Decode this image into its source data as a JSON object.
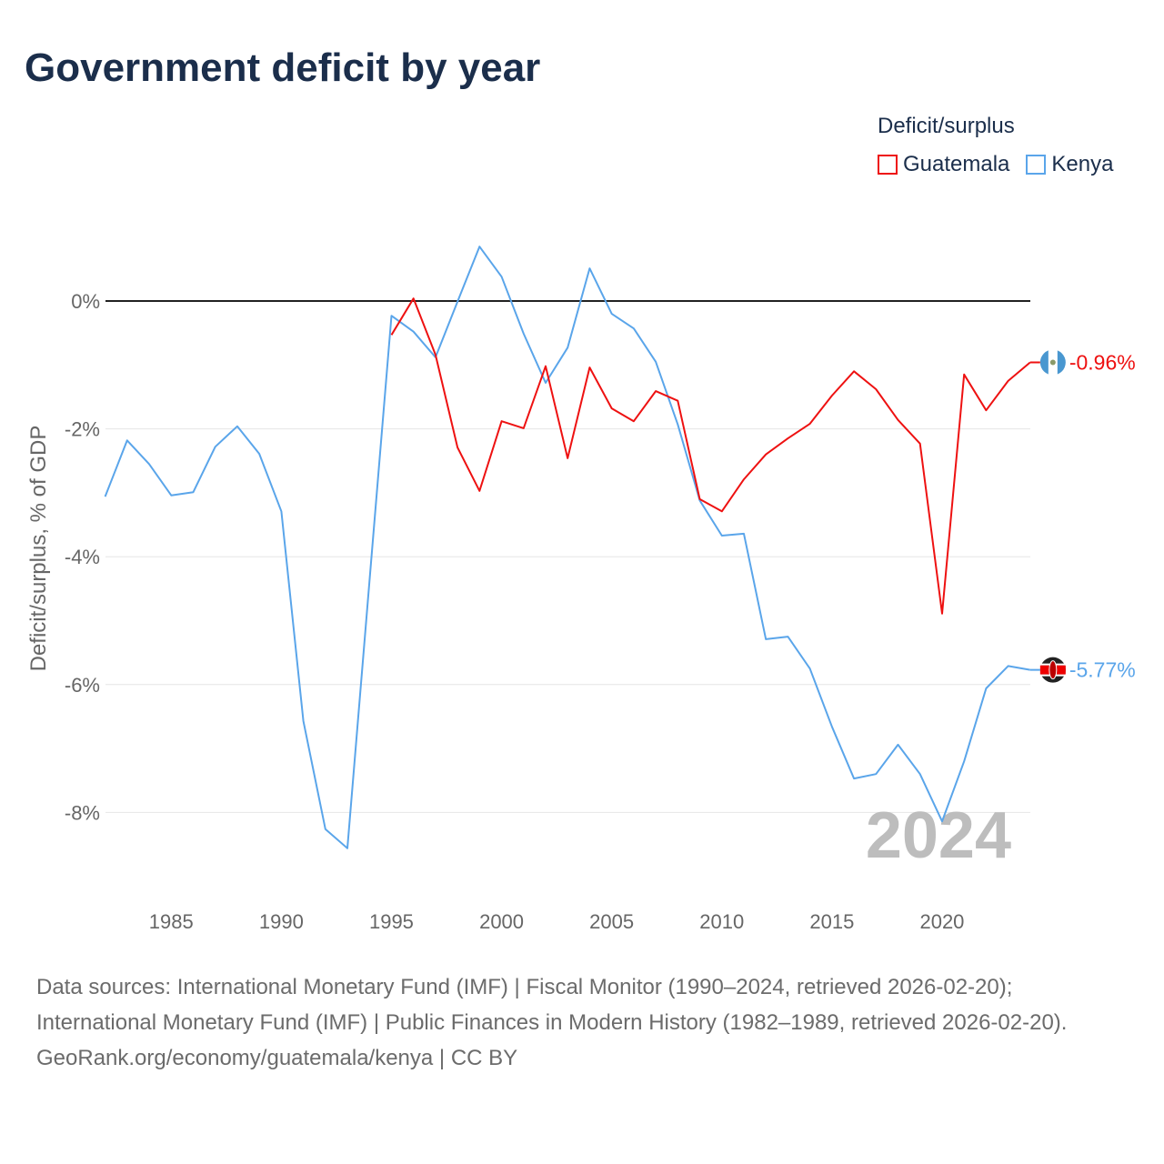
{
  "title": "Government deficit by year",
  "legend": {
    "title": "Deficit/surplus",
    "items": [
      {
        "label": "Guatemala",
        "color": "#ee1111"
      },
      {
        "label": "Kenya",
        "color": "#5aa5ea"
      }
    ]
  },
  "year_label": "2024",
  "chart_data": {
    "type": "line",
    "title": "Government deficit by year",
    "xlabel": "",
    "ylabel": "Deficit/surplus, % of GDP",
    "xlim": [
      1982,
      2024
    ],
    "ylim": [
      -9.2,
      1.1
    ],
    "x_ticks": [
      1985,
      1990,
      1995,
      2000,
      2005,
      2010,
      2015,
      2020
    ],
    "x_tick_labels": [
      "1985",
      "1990",
      "1995",
      "2000",
      "2005",
      "2010",
      "2015",
      "2020"
    ],
    "y_ticks": [
      0,
      -2,
      -4,
      -6,
      -8
    ],
    "y_tick_labels": [
      "0%",
      "-2%",
      "-4%",
      "-6%",
      "-8%"
    ],
    "grid": true,
    "legend_position": "top-right",
    "series": [
      {
        "name": "Guatemala",
        "color": "#ee1111",
        "end_label": "-0.96%",
        "x": [
          1995,
          1996,
          1997,
          1998,
          1999,
          2000,
          2001,
          2002,
          2003,
          2004,
          2005,
          2006,
          2007,
          2008,
          2009,
          2010,
          2011,
          2012,
          2013,
          2014,
          2015,
          2016,
          2017,
          2018,
          2019,
          2020,
          2021,
          2022,
          2023,
          2024
        ],
        "values": [
          -0.53,
          0.04,
          -0.84,
          -2.29,
          -2.97,
          -1.88,
          -1.99,
          -1.02,
          -2.46,
          -1.04,
          -1.68,
          -1.88,
          -1.41,
          -1.56,
          -3.1,
          -3.29,
          -2.79,
          -2.4,
          -2.15,
          -1.92,
          -1.48,
          -1.1,
          -1.38,
          -1.86,
          -2.23,
          -4.89,
          -1.15,
          -1.71,
          -1.25,
          -0.96
        ]
      },
      {
        "name": "Kenya",
        "color": "#5aa5ea",
        "end_label": "-5.77%",
        "x": [
          1982,
          1983,
          1984,
          1985,
          1986,
          1987,
          1988,
          1989,
          1990,
          1991,
          1992,
          1993,
          1994,
          1995,
          1996,
          1997,
          1998,
          1999,
          2000,
          2001,
          2002,
          2003,
          2004,
          2005,
          2006,
          2007,
          2008,
          2009,
          2010,
          2011,
          2012,
          2013,
          2014,
          2015,
          2016,
          2017,
          2018,
          2019,
          2020,
          2021,
          2022,
          2023,
          2024
        ],
        "values": [
          -3.06,
          -2.18,
          -2.55,
          -3.04,
          -2.99,
          -2.28,
          -1.96,
          -2.39,
          -3.29,
          -6.57,
          -8.26,
          -8.56,
          -4.4,
          -0.23,
          -0.48,
          -0.88,
          -0.01,
          0.85,
          0.38,
          -0.51,
          -1.28,
          -0.73,
          0.51,
          -0.2,
          -0.43,
          -0.95,
          -1.93,
          -3.12,
          -3.67,
          -3.64,
          -5.29,
          -5.25,
          -5.75,
          -6.66,
          -7.47,
          -7.4,
          -6.94,
          -7.4,
          -8.14,
          -7.2,
          -6.06,
          -5.71,
          -5.77
        ]
      }
    ]
  },
  "footer": {
    "sources": "Data sources: International Monetary Fund (IMF) | Fiscal Monitor (1990–2024, retrieved 2026-02-20); International Monetary Fund (IMF) | Public Finances in Modern History (1982–1989, retrieved 2026-02-20).",
    "credit": "GeoRank.org/economy/guatemala/kenya | CC BY"
  }
}
